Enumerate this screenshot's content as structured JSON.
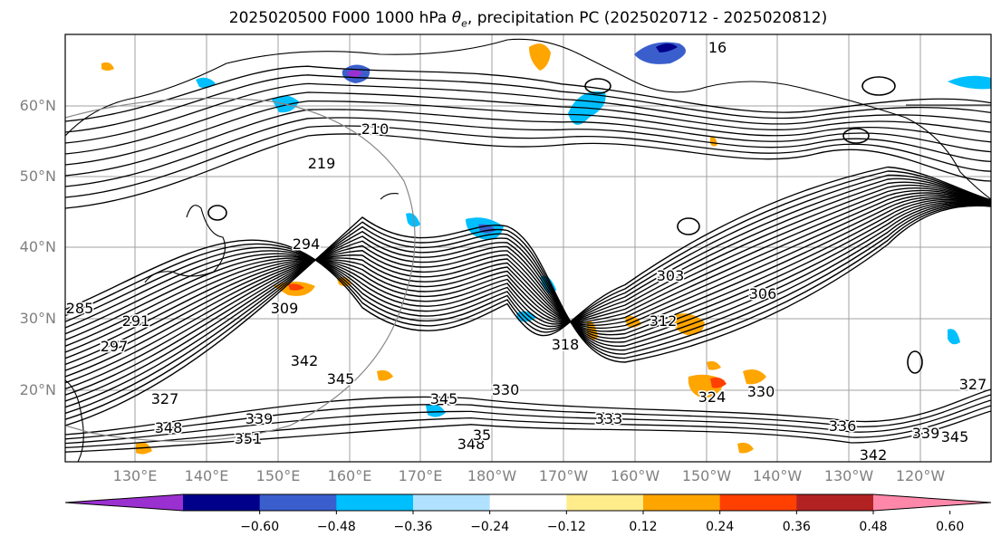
{
  "title": {
    "prefix": "2025020500 F000 1000 hPa ",
    "symbol": "θ",
    "subscript": "e",
    "suffix": ", precipitation PC (2025020712 - 2025020812)"
  },
  "map": {
    "lat_labels": [
      "60°N",
      "50°N",
      "40°N",
      "30°N",
      "20°N"
    ],
    "lon_labels": [
      "130°E",
      "140°E",
      "150°E",
      "160°E",
      "170°E",
      "180°W",
      "170°W",
      "160°W",
      "150°W",
      "140°W",
      "130°W",
      "120°W"
    ],
    "contour_labels": [
      "16",
      "210",
      "219",
      "294",
      "303",
      "306",
      "309",
      "291",
      "297",
      "285",
      "342",
      "345",
      "345",
      "348",
      "339",
      "351",
      "327",
      "330",
      "333",
      "336",
      "339",
      "345",
      "342",
      "318",
      "312",
      "324",
      "330",
      "327",
      "348",
      "35"
    ],
    "grid_color": "#a0a0a0",
    "contour_color": "#000000"
  },
  "colorbar": {
    "tick_labels": [
      "−0.60",
      "−0.48",
      "−0.36",
      "−0.24",
      "−0.12",
      "0.12",
      "0.24",
      "0.36",
      "0.48",
      "0.60"
    ],
    "colors": [
      "#9b30d0",
      "#00008b",
      "#3a5fcd",
      "#00bfff",
      "#b0e2ff",
      "#ffffff",
      "#ffec8b",
      "#ffa500",
      "#ff4000",
      "#b22222",
      "#ff88aa"
    ]
  }
}
